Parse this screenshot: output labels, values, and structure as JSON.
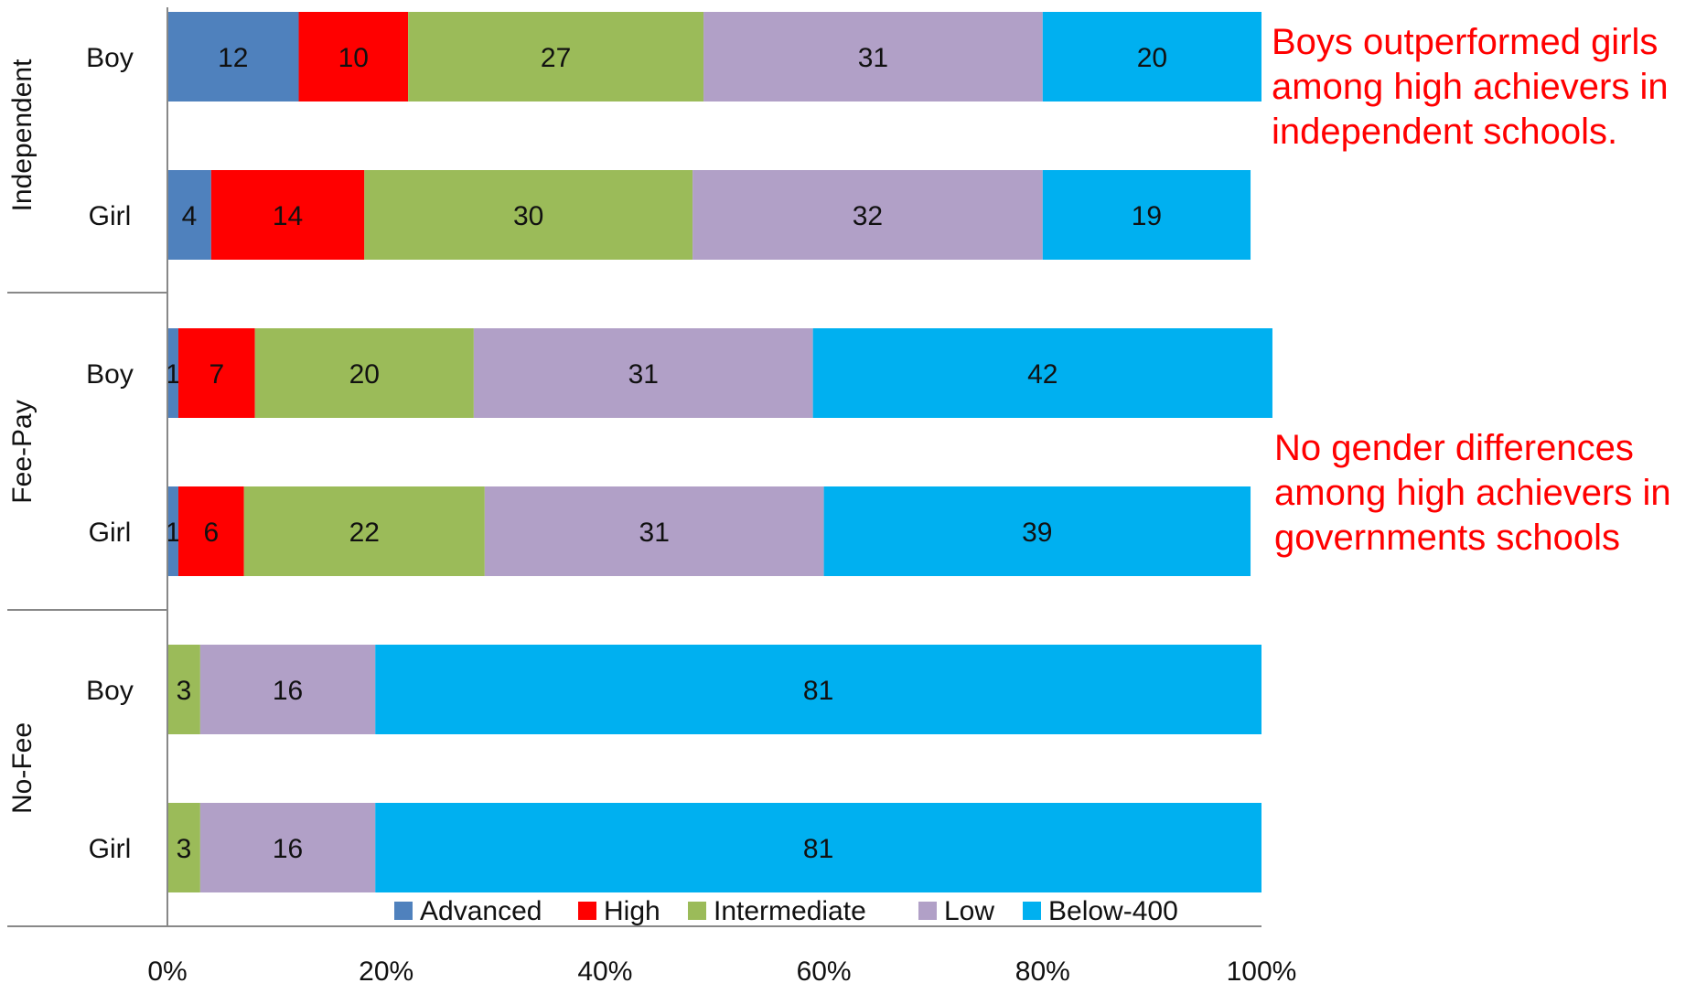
{
  "chart_data": {
    "type": "bar",
    "orientation": "horizontal",
    "stacked": true,
    "percent": true,
    "groups": [
      "Independent",
      "Fee‑Pay",
      "No‑Fee"
    ],
    "categories": [
      "Boy",
      "Girl",
      "Boy",
      "Girl",
      "Boy",
      "Girl"
    ],
    "category_groups": [
      0,
      0,
      1,
      1,
      2,
      2
    ],
    "series": [
      {
        "name": "Advanced",
        "color": "#4f81bd",
        "values": [
          12,
          4,
          1,
          1,
          0,
          0
        ]
      },
      {
        "name": "High",
        "color": "#ff0000",
        "values": [
          10,
          14,
          7,
          6,
          0,
          0
        ]
      },
      {
        "name": "Intermediate",
        "color": "#9bbb59",
        "values": [
          27,
          30,
          20,
          22,
          3,
          3
        ]
      },
      {
        "name": "Low",
        "color": "#b1a0c7",
        "values": [
          31,
          32,
          31,
          31,
          16,
          16
        ]
      },
      {
        "name": "Below‑400",
        "color": "#00b0f0",
        "values": [
          20,
          19,
          42,
          39,
          81,
          81
        ]
      }
    ],
    "x_ticks": [
      "0%",
      "20%",
      "40%",
      "60%",
      "80%",
      "100%"
    ],
    "xlim": [
      0,
      100
    ],
    "grid": false,
    "legend_position": "bottom"
  },
  "annotations": [
    {
      "lines": [
        "Boys outperformed girls",
        "among high achievers in",
        "independent schools."
      ]
    },
    {
      "lines": [
        "No gender differences",
        "among high achievers in",
        "governments schools"
      ]
    }
  ]
}
